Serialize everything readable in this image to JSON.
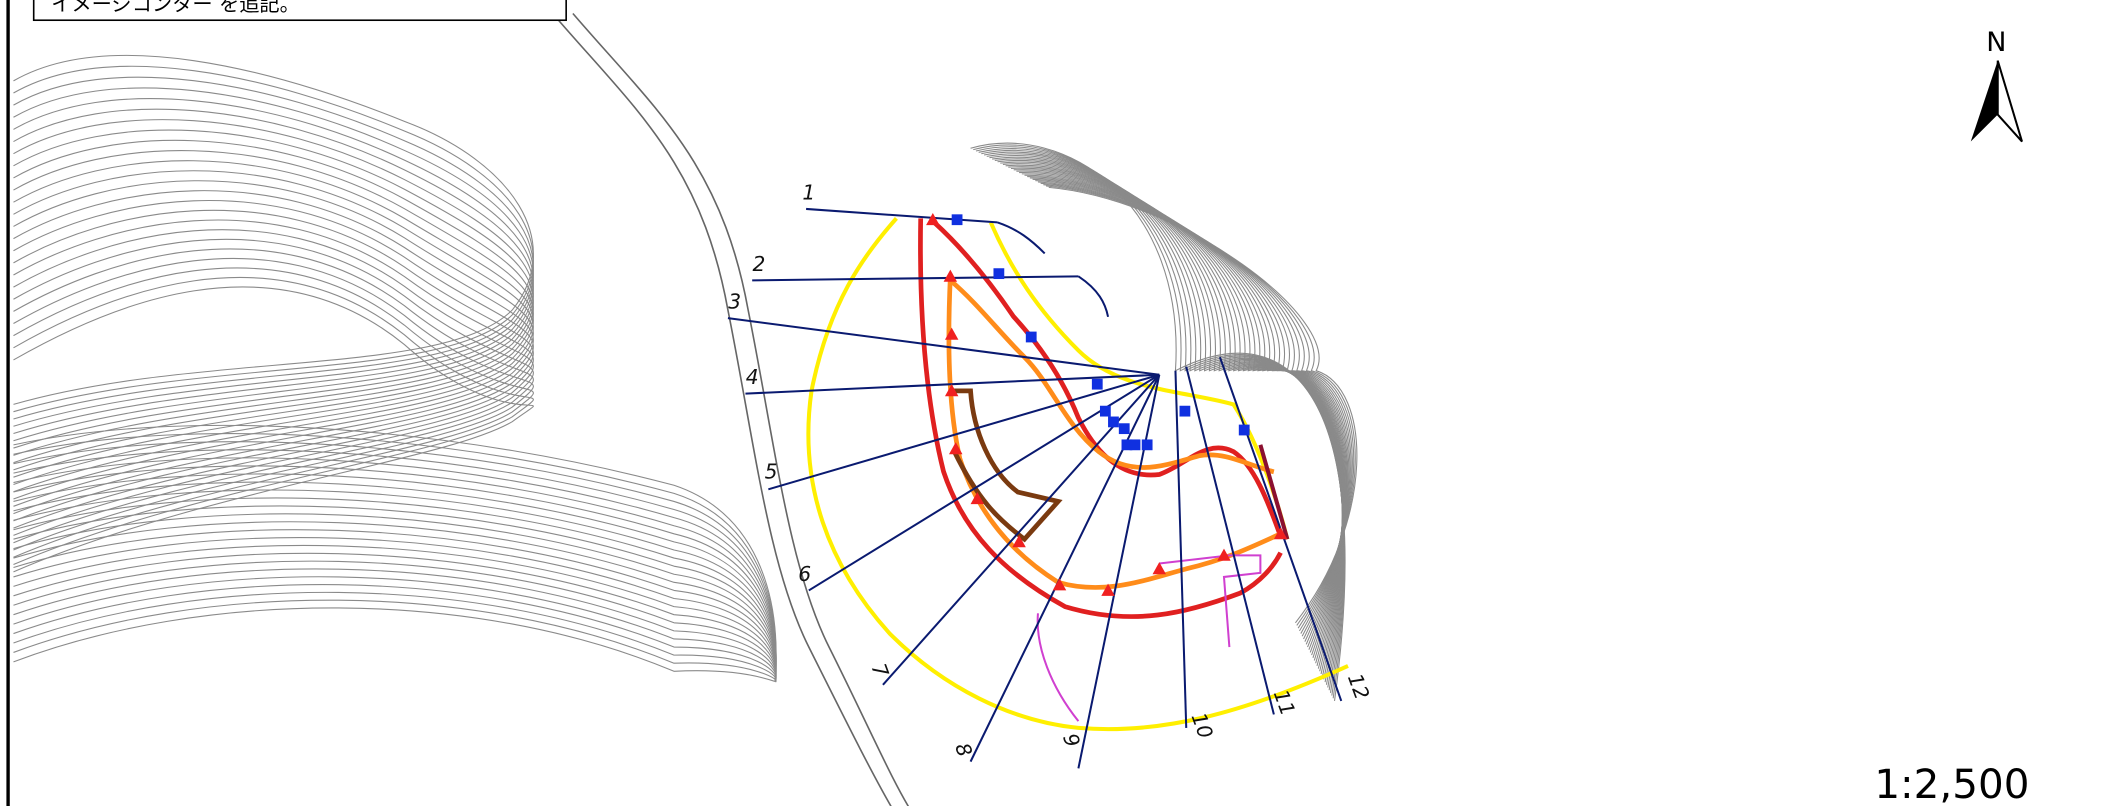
{
  "note": "イメージコンター を追記。",
  "north": "N",
  "scale": "1:2,500",
  "sections": [
    "1",
    "2",
    "3",
    "4",
    "5",
    "6",
    "7",
    "8",
    "9",
    "10",
    "11",
    "12"
  ]
}
